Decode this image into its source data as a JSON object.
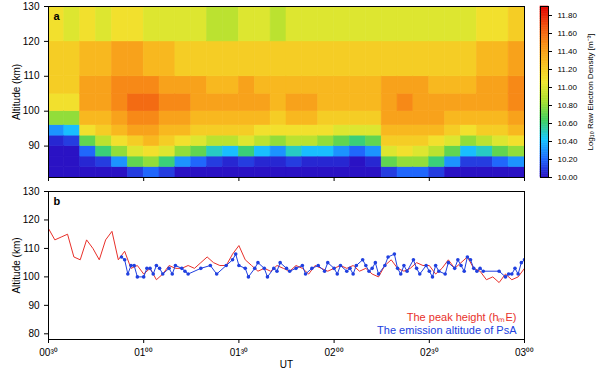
{
  "chart_data": [
    {
      "type": "heatmap",
      "title": "a",
      "ylabel": "Altitude (km)",
      "xlim": [
        30,
        180
      ],
      "xticks": [
        {
          "value": 30,
          "label": "00³⁰"
        },
        {
          "value": 60,
          "label": "01⁰⁰"
        },
        {
          "value": 90,
          "label": "01³⁰"
        },
        {
          "value": 120,
          "label": "02⁰⁰"
        },
        {
          "value": 150,
          "label": "02³⁰"
        },
        {
          "value": 180,
          "label": "03⁰⁰"
        }
      ],
      "ylim": [
        81,
        130
      ],
      "yticks": [
        90,
        100,
        110,
        120,
        130
      ],
      "tick_labels": "y",
      "x_edges": [
        30,
        35,
        40,
        45,
        50,
        55,
        60,
        65,
        70,
        75,
        80,
        85,
        90,
        95,
        100,
        105,
        110,
        115,
        120,
        125,
        130,
        135,
        140,
        145,
        150,
        155,
        160,
        165,
        170,
        175,
        180
      ],
      "y_edges": [
        81,
        84,
        87,
        90,
        93,
        96,
        100,
        105,
        110,
        120,
        130
      ],
      "cells": [
        [
          10.0,
          10.0,
          10.0,
          10.05,
          10.3,
          10.8,
          11.1,
          11.2,
          11.2,
          11.1
        ],
        [
          10.0,
          10.0,
          10.0,
          10.1,
          10.4,
          10.8,
          11.1,
          11.2,
          11.2,
          11.0
        ],
        [
          10.0,
          10.05,
          10.2,
          10.7,
          11.1,
          11.3,
          11.4,
          11.4,
          11.3,
          11.1
        ],
        [
          10.0,
          10.1,
          10.6,
          10.9,
          11.2,
          11.3,
          11.4,
          11.4,
          11.3,
          11.0
        ],
        [
          10.0,
          10.3,
          10.8,
          11.1,
          11.3,
          11.4,
          11.5,
          11.5,
          11.4,
          11.1
        ],
        [
          10.1,
          10.7,
          11.0,
          11.2,
          11.4,
          11.5,
          11.6,
          11.5,
          11.4,
          11.1
        ],
        [
          10.2,
          10.8,
          11.1,
          11.3,
          11.4,
          11.5,
          11.6,
          11.5,
          11.3,
          11.0
        ],
        [
          10.1,
          10.6,
          11.0,
          11.2,
          11.3,
          11.4,
          11.5,
          11.4,
          11.3,
          11.0
        ],
        [
          10.0,
          10.3,
          10.8,
          11.1,
          11.3,
          11.4,
          11.5,
          11.4,
          11.2,
          11.0
        ],
        [
          10.0,
          10.2,
          10.7,
          11.0,
          11.2,
          11.3,
          11.4,
          11.4,
          11.2,
          11.0
        ],
        [
          10.0,
          10.1,
          10.5,
          10.9,
          11.2,
          11.3,
          11.4,
          11.3,
          11.2,
          10.9
        ],
        [
          10.0,
          10.05,
          10.4,
          10.9,
          11.2,
          11.3,
          11.4,
          11.3,
          11.2,
          10.9
        ],
        [
          10.0,
          10.1,
          10.6,
          11.0,
          11.2,
          11.3,
          11.4,
          11.4,
          11.2,
          11.0
        ],
        [
          10.0,
          10.05,
          10.4,
          10.9,
          11.1,
          11.3,
          11.4,
          11.3,
          11.2,
          11.0
        ],
        [
          10.0,
          10.05,
          10.3,
          10.8,
          11.1,
          11.2,
          11.3,
          11.3,
          11.2,
          10.9
        ],
        [
          10.0,
          10.1,
          10.5,
          10.9,
          11.1,
          11.3,
          11.4,
          11.3,
          11.2,
          11.0
        ],
        [
          10.0,
          10.05,
          10.4,
          10.9,
          11.1,
          11.3,
          11.4,
          11.3,
          11.2,
          11.0
        ],
        [
          10.0,
          10.05,
          10.4,
          10.8,
          11.1,
          11.2,
          11.3,
          11.3,
          11.2,
          11.0
        ],
        [
          10.0,
          10.05,
          10.3,
          10.7,
          11.0,
          11.2,
          11.3,
          11.3,
          11.2,
          11.0
        ],
        [
          10.0,
          10.0,
          10.2,
          10.6,
          11.0,
          11.2,
          11.3,
          11.3,
          11.2,
          11.0
        ],
        [
          10.0,
          10.05,
          10.3,
          10.7,
          11.0,
          11.2,
          11.3,
          11.3,
          11.2,
          11.0
        ],
        [
          10.1,
          10.7,
          11.0,
          11.2,
          11.3,
          11.4,
          11.4,
          11.4,
          11.2,
          11.0
        ],
        [
          10.2,
          10.8,
          11.1,
          11.2,
          11.3,
          11.4,
          11.5,
          11.4,
          11.2,
          11.0
        ],
        [
          10.2,
          10.8,
          11.0,
          11.2,
          11.3,
          11.4,
          11.4,
          11.4,
          11.2,
          11.0
        ],
        [
          10.1,
          10.6,
          10.9,
          11.1,
          11.3,
          11.4,
          11.4,
          11.3,
          11.2,
          11.0
        ],
        [
          10.0,
          10.3,
          10.7,
          11.0,
          11.2,
          11.3,
          11.4,
          11.3,
          11.2,
          11.0
        ],
        [
          10.0,
          10.1,
          10.4,
          10.8,
          11.1,
          11.3,
          11.4,
          11.3,
          11.2,
          11.0
        ],
        [
          10.0,
          10.1,
          10.5,
          10.9,
          11.2,
          11.3,
          11.4,
          11.4,
          11.3,
          11.1
        ],
        [
          10.0,
          10.2,
          10.7,
          11.0,
          11.2,
          11.3,
          11.4,
          11.4,
          11.3,
          11.1
        ],
        [
          10.0,
          10.3,
          10.8,
          11.1,
          11.3,
          11.4,
          11.5,
          11.5,
          11.4,
          11.2
        ]
      ],
      "colorbar": {
        "label": "Log₁₀ Raw Electron Density [m⁻³]",
        "range": [
          10.0,
          11.9
        ],
        "ticks": [
          {
            "value": 10.0,
            "label": "10.00"
          },
          {
            "value": 10.2,
            "label": "10.20"
          },
          {
            "value": 10.4,
            "label": "10.40"
          },
          {
            "value": 10.6,
            "label": "10.60"
          },
          {
            "value": 10.8,
            "label": "10.80"
          },
          {
            "value": 11.0,
            "label": "11.00"
          },
          {
            "value": 11.2,
            "label": "11.20"
          },
          {
            "value": 11.4,
            "label": "11.40"
          },
          {
            "value": 11.6,
            "label": "11.60"
          },
          {
            "value": 11.8,
            "label": "11.80"
          }
        ]
      }
    },
    {
      "type": "line",
      "title": "b",
      "xlabel": "UT",
      "ylabel": "Altitude (km)",
      "xlim": [
        30,
        180
      ],
      "xticks": [
        {
          "value": 30,
          "label": "00³⁰"
        },
        {
          "value": 60,
          "label": "01⁰⁰"
        },
        {
          "value": 90,
          "label": "01³⁰"
        },
        {
          "value": 120,
          "label": "02⁰⁰"
        },
        {
          "value": 150,
          "label": "02³⁰"
        },
        {
          "value": 180,
          "label": "03⁰⁰"
        }
      ],
      "ylim": [
        78,
        130
      ],
      "yticks": [
        80,
        90,
        100,
        110,
        120,
        130
      ],
      "legend": "bottom-right",
      "series": [
        {
          "name": "The peak height (hₘE)",
          "color": "#e8302a",
          "marker": "none",
          "x": [
            30,
            32,
            34,
            36,
            38,
            40,
            42,
            44,
            46,
            48,
            50,
            52,
            54,
            56,
            58,
            60,
            62,
            64,
            66,
            68,
            70,
            72,
            74,
            76,
            78,
            80,
            82,
            84,
            86,
            88,
            90,
            92,
            94,
            96,
            98,
            100,
            102,
            104,
            106,
            108,
            110,
            112,
            114,
            116,
            118,
            120,
            122,
            124,
            126,
            128,
            130,
            132,
            134,
            136,
            138,
            140,
            142,
            144,
            146,
            148,
            150,
            152,
            154,
            156,
            158,
            160,
            162,
            164,
            166,
            168,
            170,
            172,
            174,
            176,
            178,
            180
          ],
          "values": [
            117,
            113,
            114,
            115,
            107,
            106,
            113,
            110,
            106,
            113,
            116,
            106,
            109,
            103,
            104,
            101,
            103,
            99,
            101,
            104,
            103,
            103,
            104,
            103,
            105,
            107,
            105,
            104,
            104,
            108,
            111,
            106,
            104,
            102,
            103,
            102,
            104,
            103,
            102,
            104,
            103,
            101,
            104,
            103,
            102,
            103,
            104,
            103,
            104,
            102,
            103,
            101,
            100,
            104,
            106,
            103,
            102,
            103,
            105,
            104,
            104,
            101,
            103,
            106,
            103,
            105,
            107,
            103,
            102,
            99,
            100,
            98,
            101,
            99,
            100,
            103
          ]
        },
        {
          "name": "The emission altitude of PsA",
          "color": "#2040e0",
          "marker": "circle",
          "x": [
            53,
            54,
            55,
            56,
            57,
            58,
            60,
            61,
            62,
            63,
            64,
            65,
            66,
            68,
            69,
            70,
            72,
            73,
            74,
            78,
            81,
            83,
            86,
            88,
            89,
            90,
            92,
            93,
            95,
            96,
            98,
            99,
            101,
            102,
            103,
            105,
            106,
            108,
            110,
            111,
            113,
            115,
            117,
            118,
            120,
            121,
            122,
            124,
            125,
            126,
            127,
            129,
            130,
            131,
            132,
            133,
            134,
            136,
            137,
            139,
            140,
            141,
            142,
            143,
            145,
            146,
            147,
            149,
            150,
            151,
            152,
            153,
            155,
            156,
            158,
            159,
            160,
            161,
            162,
            163,
            164,
            165,
            166,
            167,
            172,
            174,
            175,
            176,
            177,
            178,
            179,
            180
          ],
          "values": [
            107,
            106,
            101,
            104,
            104,
            100,
            100,
            103,
            103,
            101,
            104,
            103,
            101,
            103,
            101,
            104,
            103,
            102,
            101,
            103,
            104,
            101,
            104,
            106,
            108,
            104,
            103,
            100,
            103,
            105,
            103,
            100,
            103,
            102,
            105,
            103,
            102,
            103,
            104,
            101,
            103,
            104,
            102,
            105,
            103,
            101,
            104,
            102,
            103,
            101,
            104,
            106,
            104,
            102,
            103,
            105,
            101,
            104,
            107,
            108,
            103,
            101,
            104,
            102,
            106,
            103,
            101,
            104,
            102,
            100,
            104,
            102,
            101,
            105,
            103,
            106,
            104,
            102,
            107,
            106,
            103,
            102,
            103,
            102,
            102,
            100,
            101,
            101,
            103,
            101,
            105,
            106
          ]
        }
      ]
    }
  ]
}
